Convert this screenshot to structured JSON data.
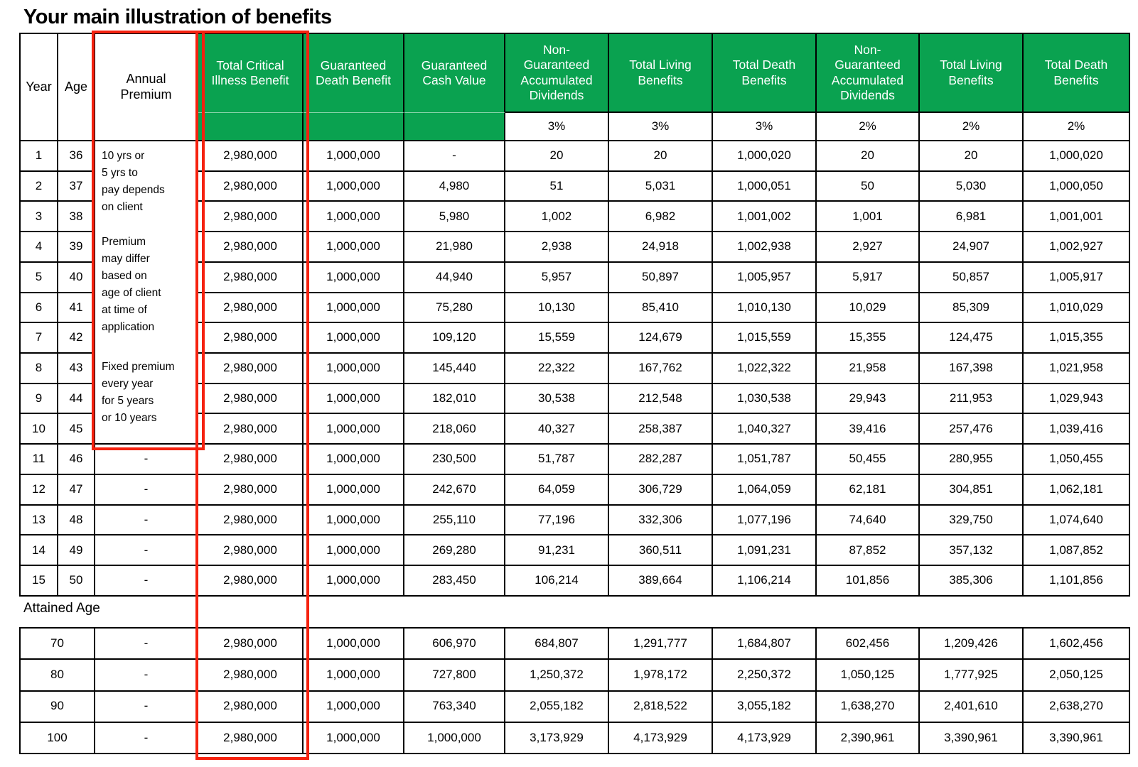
{
  "page_title": "Your main illustration of benefits",
  "colors": {
    "header_green": "#0aa250",
    "annotation_red": "#f5220f",
    "border_black": "#000000",
    "header_text_white": "#ffffff"
  },
  "table": {
    "columns": [
      "Year",
      "Age",
      "Annual\nPremium",
      "Total Critical\nIllness Benefit",
      "Guaranteed\nDeath Benefit",
      "Guaranteed\nCash Value",
      "Non-\nGuaranteed\nAccumulated\nDividends",
      "Total Living\nBenefits",
      "Total Death\nBenefits",
      "Non-\nGuaranteed\nAccumulated\nDividends",
      "Total Living\nBenefits",
      "Total Death\nBenefits"
    ],
    "rate_subheaders": [
      "3%",
      "3%",
      "3%",
      "2%",
      "2%",
      "2%"
    ],
    "premium_notes": [
      "10 yrs or\n5 yrs to\npay depends\non client",
      "Premium\nmay differ\nbased on\nage of client\nat time of\napplication",
      "Fixed premium\nevery year\nfor 5 years\nor 10 years"
    ],
    "rows": [
      {
        "year": "1",
        "age": "36",
        "premium": null,
        "values": [
          "2,980,000",
          "1,000,000",
          "-",
          "20",
          "20",
          "1,000,020",
          "20",
          "20",
          "1,000,020"
        ]
      },
      {
        "year": "2",
        "age": "37",
        "premium": null,
        "values": [
          "2,980,000",
          "1,000,000",
          "4,980",
          "51",
          "5,031",
          "1,000,051",
          "50",
          "5,030",
          "1,000,050"
        ]
      },
      {
        "year": "3",
        "age": "38",
        "premium": null,
        "values": [
          "2,980,000",
          "1,000,000",
          "5,980",
          "1,002",
          "6,982",
          "1,001,002",
          "1,001",
          "6,981",
          "1,001,001"
        ]
      },
      {
        "year": "4",
        "age": "39",
        "premium": null,
        "values": [
          "2,980,000",
          "1,000,000",
          "21,980",
          "2,938",
          "24,918",
          "1,002,938",
          "2,927",
          "24,907",
          "1,002,927"
        ]
      },
      {
        "year": "5",
        "age": "40",
        "premium": null,
        "values": [
          "2,980,000",
          "1,000,000",
          "44,940",
          "5,957",
          "50,897",
          "1,005,957",
          "5,917",
          "50,857",
          "1,005,917"
        ]
      },
      {
        "year": "6",
        "age": "41",
        "premium": null,
        "values": [
          "2,980,000",
          "1,000,000",
          "75,280",
          "10,130",
          "85,410",
          "1,010,130",
          "10,029",
          "85,309",
          "1,010,029"
        ]
      },
      {
        "year": "7",
        "age": "42",
        "premium": null,
        "values": [
          "2,980,000",
          "1,000,000",
          "109,120",
          "15,559",
          "124,679",
          "1,015,559",
          "15,355",
          "124,475",
          "1,015,355"
        ]
      },
      {
        "year": "8",
        "age": "43",
        "premium": null,
        "values": [
          "2,980,000",
          "1,000,000",
          "145,440",
          "22,322",
          "167,762",
          "1,022,322",
          "21,958",
          "167,398",
          "1,021,958"
        ]
      },
      {
        "year": "9",
        "age": "44",
        "premium": null,
        "values": [
          "2,980,000",
          "1,000,000",
          "182,010",
          "30,538",
          "212,548",
          "1,030,538",
          "29,943",
          "211,953",
          "1,029,943"
        ]
      },
      {
        "year": "10",
        "age": "45",
        "premium": null,
        "values": [
          "2,980,000",
          "1,000,000",
          "218,060",
          "40,327",
          "258,387",
          "1,040,327",
          "39,416",
          "257,476",
          "1,039,416"
        ]
      },
      {
        "year": "11",
        "age": "46",
        "premium": "-",
        "values": [
          "2,980,000",
          "1,000,000",
          "230,500",
          "51,787",
          "282,287",
          "1,051,787",
          "50,455",
          "280,955",
          "1,050,455"
        ]
      },
      {
        "year": "12",
        "age": "47",
        "premium": "-",
        "values": [
          "2,980,000",
          "1,000,000",
          "242,670",
          "64,059",
          "306,729",
          "1,064,059",
          "62,181",
          "304,851",
          "1,062,181"
        ]
      },
      {
        "year": "13",
        "age": "48",
        "premium": "-",
        "values": [
          "2,980,000",
          "1,000,000",
          "255,110",
          "77,196",
          "332,306",
          "1,077,196",
          "74,640",
          "329,750",
          "1,074,640"
        ]
      },
      {
        "year": "14",
        "age": "49",
        "premium": "-",
        "values": [
          "2,980,000",
          "1,000,000",
          "269,280",
          "91,231",
          "360,511",
          "1,091,231",
          "87,852",
          "357,132",
          "1,087,852"
        ]
      },
      {
        "year": "15",
        "age": "50",
        "premium": "-",
        "values": [
          "2,980,000",
          "1,000,000",
          "283,450",
          "106,214",
          "389,664",
          "1,106,214",
          "101,856",
          "385,306",
          "1,101,856"
        ]
      }
    ]
  },
  "attained": {
    "label": "Attained Age",
    "rows": [
      {
        "age": "70",
        "premium": "-",
        "values": [
          "2,980,000",
          "1,000,000",
          "606,970",
          "684,807",
          "1,291,777",
          "1,684,807",
          "602,456",
          "1,209,426",
          "1,602,456"
        ]
      },
      {
        "age": "80",
        "premium": "-",
        "values": [
          "2,980,000",
          "1,000,000",
          "727,800",
          "1,250,372",
          "1,978,172",
          "2,250,372",
          "1,050,125",
          "1,777,925",
          "2,050,125"
        ]
      },
      {
        "age": "90",
        "premium": "-",
        "values": [
          "2,980,000",
          "1,000,000",
          "763,340",
          "2,055,182",
          "2,818,522",
          "3,055,182",
          "1,638,270",
          "2,401,610",
          "2,638,270"
        ]
      },
      {
        "age": "100",
        "premium": "-",
        "values": [
          "2,980,000",
          "1,000,000",
          "1,000,000",
          "3,173,929",
          "4,173,929",
          "4,173,929",
          "2,390,961",
          "3,390,961",
          "3,390,961"
        ]
      }
    ]
  }
}
